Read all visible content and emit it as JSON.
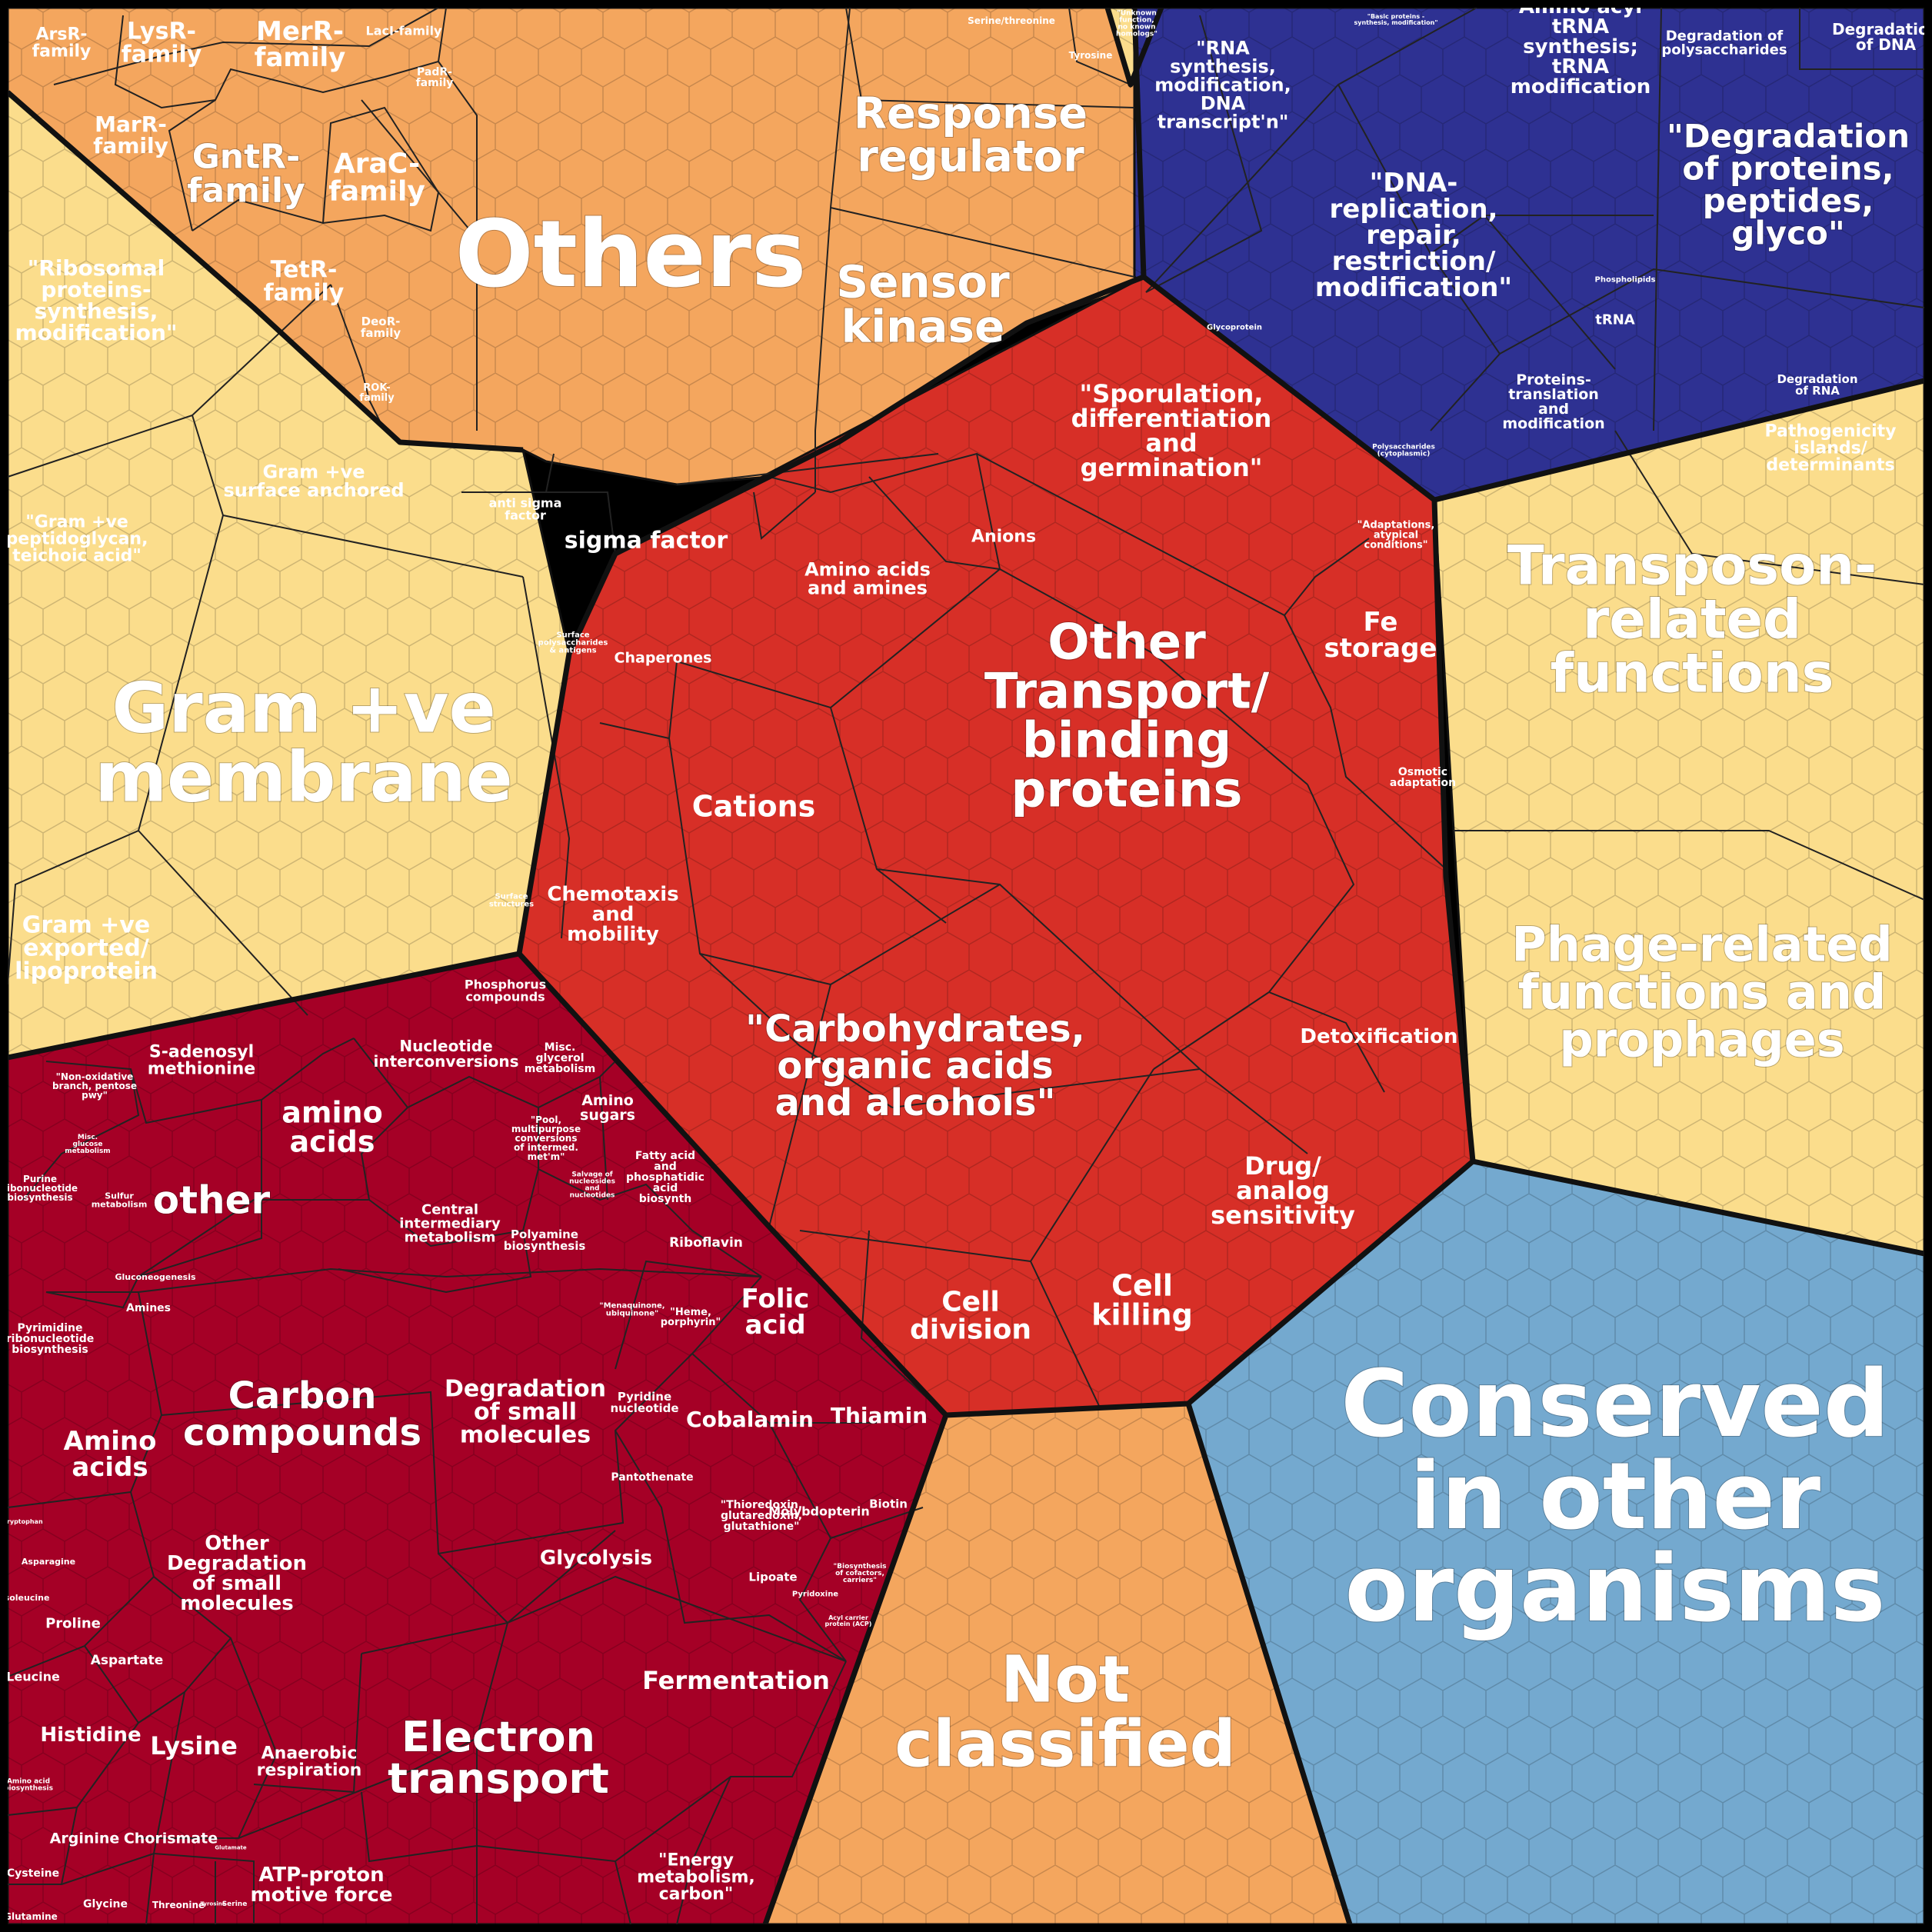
{
  "colors": {
    "orange": "#F4A65E",
    "yellow": "#FBDD8C",
    "blue": "#2E3192",
    "red": "#D72F27",
    "darkred": "#A50026",
    "lightblue": "#74A9CF",
    "border": "#111111"
  },
  "regions": [
    {
      "name": "orange-top-region",
      "color": "orange"
    },
    {
      "name": "yellow-left-region",
      "color": "yellow"
    },
    {
      "name": "yellow-top-small-region",
      "color": "yellow"
    },
    {
      "name": "blue-region",
      "color": "blue"
    },
    {
      "name": "yellow-right-region",
      "color": "yellow"
    },
    {
      "name": "lightblue-region",
      "color": "lightblue"
    },
    {
      "name": "not-classified-region",
      "color": "orange"
    },
    {
      "name": "darkred-region",
      "color": "darkred"
    },
    {
      "name": "red-center-region",
      "color": "red"
    }
  ],
  "labels": [
    {
      "id": "others",
      "lines": [
        "Others"
      ],
      "size": 120,
      "tone": "light"
    },
    {
      "id": "response-regulator",
      "lines": [
        "Response",
        "regulator"
      ],
      "size": 56,
      "tone": "light"
    },
    {
      "id": "sensor-kinase",
      "lines": [
        "Sensor",
        "kinase"
      ],
      "size": 58,
      "tone": "light"
    },
    {
      "id": "sigma-factor",
      "lines": [
        "sigma factor"
      ],
      "size": 30,
      "tone": "light"
    },
    {
      "id": "anti-sigma-factor",
      "lines": [
        "anti sigma",
        "factor"
      ],
      "size": 16,
      "tone": "light"
    },
    {
      "id": "arsr-family",
      "lines": [
        "ArsR-",
        "family"
      ],
      "size": 22,
      "tone": "light"
    },
    {
      "id": "lysr-family",
      "lines": [
        "LysR-",
        "family"
      ],
      "size": 30,
      "tone": "light"
    },
    {
      "id": "merr-family",
      "lines": [
        "MerR-",
        "family"
      ],
      "size": 34,
      "tone": "light"
    },
    {
      "id": "laci-family",
      "lines": [
        "LacI-family"
      ],
      "size": 16,
      "tone": "light"
    },
    {
      "id": "padr-family",
      "lines": [
        "PadR-",
        "family"
      ],
      "size": 14,
      "tone": "light"
    },
    {
      "id": "marr-family",
      "lines": [
        "MarR-",
        "family"
      ],
      "size": 28,
      "tone": "light"
    },
    {
      "id": "gntr-family",
      "lines": [
        "GntR-",
        "family"
      ],
      "size": 44,
      "tone": "light"
    },
    {
      "id": "arac-family",
      "lines": [
        "AraC-",
        "family"
      ],
      "size": 36,
      "tone": "light"
    },
    {
      "id": "tetr-family",
      "lines": [
        "TetR-",
        "family"
      ],
      "size": 30,
      "tone": "light"
    },
    {
      "id": "deor-family",
      "lines": [
        "DeoR-",
        "family"
      ],
      "size": 15,
      "tone": "light"
    },
    {
      "id": "rok-family",
      "lines": [
        "ROK-",
        "family"
      ],
      "size": 13,
      "tone": "light"
    },
    {
      "id": "serine-threonine",
      "lines": [
        "Serine/threonine"
      ],
      "size": 12,
      "tone": "light"
    },
    {
      "id": "tyrosine",
      "lines": [
        "Tyrosine"
      ],
      "size": 12,
      "tone": "light"
    },
    {
      "id": "unknown-function",
      "lines": [
        "\"Unknown",
        "function,",
        "no known",
        "homologs\""
      ],
      "size": 9,
      "tone": "light"
    },
    {
      "id": "ribosomal-proteins",
      "lines": [
        "\"Ribosomal",
        "proteins-",
        "synthesis,",
        "modification\""
      ],
      "size": 28,
      "tone": "light"
    },
    {
      "id": "gram-surface-anchored",
      "lines": [
        "Gram +ve",
        "surface anchored"
      ],
      "size": 24,
      "tone": "light"
    },
    {
      "id": "gram-peptidoglycan",
      "lines": [
        "\"Gram +ve",
        "peptidoglycan,",
        "teichoic acid\""
      ],
      "size": 22,
      "tone": "light"
    },
    {
      "id": "gram-membrane",
      "lines": [
        "Gram +ve",
        "membrane"
      ],
      "size": 90,
      "tone": "light"
    },
    {
      "id": "gram-exported",
      "lines": [
        "Gram +ve",
        "exported/",
        "lipoprotein"
      ],
      "size": 30,
      "tone": "light"
    },
    {
      "id": "surface-polysaccharides",
      "lines": [
        "Surface",
        "polysaccharides",
        "& antigens"
      ],
      "size": 10,
      "tone": "light"
    },
    {
      "id": "surface-structures",
      "lines": [
        "Surface",
        "structures"
      ],
      "size": 10,
      "tone": "light"
    },
    {
      "id": "rna-synthesis",
      "lines": [
        "\"RNA",
        "synthesis,",
        "modification,",
        "DNA",
        "transcript'n\""
      ],
      "size": 24,
      "tone": "light"
    },
    {
      "id": "basic-proteins",
      "lines": [
        "\"Basic proteins -",
        "synthesis, modification\""
      ],
      "size": 8,
      "tone": "light"
    },
    {
      "id": "amino-acyl-trna",
      "lines": [
        "Amino acyl",
        "tRNA",
        "synthesis;",
        "tRNA",
        "modification"
      ],
      "size": 26,
      "tone": "light"
    },
    {
      "id": "degradation-polysaccharides",
      "lines": [
        "Degradation of",
        "polysaccharides"
      ],
      "size": 18,
      "tone": "light"
    },
    {
      "id": "degradation-dna",
      "lines": [
        "Degradation",
        "of DNA"
      ],
      "size": 20,
      "tone": "light"
    },
    {
      "id": "dna-replication",
      "lines": [
        "\"DNA-",
        "replication,",
        "repair,",
        "restriction/",
        "modification\""
      ],
      "size": 34,
      "tone": "light"
    },
    {
      "id": "degradation-proteins",
      "lines": [
        "\"Degradation",
        "of proteins,",
        "peptides,",
        "glyco\""
      ],
      "size": 42,
      "tone": "light"
    },
    {
      "id": "phospholipids",
      "lines": [
        "Phospholipids"
      ],
      "size": 10,
      "tone": "light"
    },
    {
      "id": "trna",
      "lines": [
        "tRNA"
      ],
      "size": 18,
      "tone": "light"
    },
    {
      "id": "glycoprotein",
      "lines": [
        "Glycoprotein"
      ],
      "size": 10,
      "tone": "light"
    },
    {
      "id": "proteins-translation",
      "lines": [
        "Proteins-",
        "translation",
        "and",
        "modification"
      ],
      "size": 19,
      "tone": "light"
    },
    {
      "id": "polysaccharides-cyto",
      "lines": [
        "Polysaccharides",
        "(cytoplasmic)"
      ],
      "size": 9,
      "tone": "light"
    },
    {
      "id": "degradation-rna",
      "lines": [
        "Degradation",
        "of RNA"
      ],
      "size": 15,
      "tone": "light"
    },
    {
      "id": "pathogenicity-islands",
      "lines": [
        "Pathogenicity",
        "islands/",
        "determinants"
      ],
      "size": 22,
      "tone": "light"
    },
    {
      "id": "transposon-related",
      "lines": [
        "Transposon-",
        "related",
        "functions"
      ],
      "size": 70,
      "tone": "light"
    },
    {
      "id": "phage-related",
      "lines": [
        "Phage-related",
        "functions and",
        "prophages"
      ],
      "size": 62,
      "tone": "light"
    },
    {
      "id": "conserved-other",
      "lines": [
        "Conserved",
        "in other",
        "organisms"
      ],
      "size": 120,
      "tone": "light"
    },
    {
      "id": "not-classified",
      "lines": [
        "Not",
        "classified"
      ],
      "size": 84,
      "tone": "light"
    },
    {
      "id": "sporulation",
      "lines": [
        "\"Sporulation,",
        "differentiation",
        "and",
        "germination\""
      ],
      "size": 32,
      "tone": "light"
    },
    {
      "id": "anions",
      "lines": [
        "Anions"
      ],
      "size": 22,
      "tone": "light"
    },
    {
      "id": "adaptations",
      "lines": [
        "\"Adaptations,",
        "atypical",
        "conditions\""
      ],
      "size": 13,
      "tone": "light"
    },
    {
      "id": "amino-acids-amines",
      "lines": [
        "Amino acids",
        "and amines"
      ],
      "size": 24,
      "tone": "light"
    },
    {
      "id": "fe-storage",
      "lines": [
        "Fe",
        "storage"
      ],
      "size": 34,
      "tone": "light"
    },
    {
      "id": "chaperones",
      "lines": [
        "Chaperones"
      ],
      "size": 19,
      "tone": "light"
    },
    {
      "id": "other-transport",
      "lines": [
        "Other",
        "Transport/",
        "binding",
        "proteins"
      ],
      "size": 64,
      "tone": "light"
    },
    {
      "id": "cations",
      "lines": [
        "Cations"
      ],
      "size": 38,
      "tone": "light"
    },
    {
      "id": "osmotic-adaptation",
      "lines": [
        "Osmotic",
        "adaptation"
      ],
      "size": 14,
      "tone": "light"
    },
    {
      "id": "chemotaxis",
      "lines": [
        "Chemotaxis",
        "and",
        "mobility"
      ],
      "size": 26,
      "tone": "light"
    },
    {
      "id": "detoxification",
      "lines": [
        "Detoxification"
      ],
      "size": 26,
      "tone": "light"
    },
    {
      "id": "carbohydrates",
      "lines": [
        "\"Carbohydrates,",
        "organic acids",
        "and alcohols\""
      ],
      "size": 48,
      "tone": "light"
    },
    {
      "id": "drug-analog",
      "lines": [
        "Drug/",
        "analog",
        "sensitivity"
      ],
      "size": 32,
      "tone": "light"
    },
    {
      "id": "cell-division",
      "lines": [
        "Cell",
        "division"
      ],
      "size": 36,
      "tone": "light"
    },
    {
      "id": "cell-killing",
      "lines": [
        "Cell",
        "killing"
      ],
      "size": 38,
      "tone": "light"
    },
    {
      "id": "phosphorus",
      "lines": [
        "Phosphorus",
        "compounds"
      ],
      "size": 16,
      "tone": "light"
    },
    {
      "id": "s-adenosyl",
      "lines": [
        "S-adenosyl",
        "methionine"
      ],
      "size": 22,
      "tone": "light"
    },
    {
      "id": "nucleotide-interconversions",
      "lines": [
        "Nucleotide",
        "interconversions"
      ],
      "size": 20,
      "tone": "light"
    },
    {
      "id": "misc-glycerol",
      "lines": [
        "Misc.",
        "glycerol",
        "metabolism"
      ],
      "size": 14,
      "tone": "light"
    },
    {
      "id": "non-oxidative",
      "lines": [
        "\"Non-oxidative",
        "branch, pentose",
        "pwy\""
      ],
      "size": 12,
      "tone": "light"
    },
    {
      "id": "amino-sugars",
      "lines": [
        "Amino",
        "sugars"
      ],
      "size": 19,
      "tone": "light"
    },
    {
      "id": "amino-acids-small",
      "lines": [
        "amino",
        "acids"
      ],
      "size": 38,
      "tone": "light"
    },
    {
      "id": "misc-glucose",
      "lines": [
        "Misc.",
        "glucose",
        "metabolism"
      ],
      "size": 9,
      "tone": "light"
    },
    {
      "id": "pool-multipurpose",
      "lines": [
        "\"Pool,",
        "multipurpose",
        "conversions",
        "of intermed.",
        "met'm\""
      ],
      "size": 12,
      "tone": "light"
    },
    {
      "id": "other",
      "lines": [
        "other"
      ],
      "size": 50,
      "tone": "light"
    },
    {
      "id": "purine",
      "lines": [
        "Purine",
        "ribonucleotide",
        "biosynthesis"
      ],
      "size": 12,
      "tone": "light"
    },
    {
      "id": "sulfur",
      "lines": [
        "Sulfur",
        "metabolism"
      ],
      "size": 11,
      "tone": "light"
    },
    {
      "id": "salvage",
      "lines": [
        "Salvage of",
        "nucleosides",
        "and",
        "nucleotides"
      ],
      "size": 9,
      "tone": "light"
    },
    {
      "id": "fatty-acid",
      "lines": [
        "Fatty acid",
        "and",
        "phosphatidic",
        "acid",
        "biosynth"
      ],
      "size": 14,
      "tone": "light"
    },
    {
      "id": "central-intermediary",
      "lines": [
        "Central",
        "intermediary",
        "metabolism"
      ],
      "size": 18,
      "tone": "light"
    },
    {
      "id": "polyamine",
      "lines": [
        "Polyamine",
        "biosynthesis"
      ],
      "size": 15,
      "tone": "light"
    },
    {
      "id": "gluconeogenesis",
      "lines": [
        "Gluconeogenesis"
      ],
      "size": 11,
      "tone": "light"
    },
    {
      "id": "riboflavin",
      "lines": [
        "Riboflavin"
      ],
      "size": 17,
      "tone": "light"
    },
    {
      "id": "amines",
      "lines": [
        "Amines"
      ],
      "size": 14,
      "tone": "light"
    },
    {
      "id": "menaquinone",
      "lines": [
        "\"Menaquinone,",
        "ubiquinone\""
      ],
      "size": 10,
      "tone": "light"
    },
    {
      "id": "heme",
      "lines": [
        "\"Heme,",
        "porphyrin\""
      ],
      "size": 13,
      "tone": "light"
    },
    {
      "id": "folic-acid",
      "lines": [
        "Folic",
        "acid"
      ],
      "size": 34,
      "tone": "light"
    },
    {
      "id": "pyrimidine",
      "lines": [
        "Pyrimidine",
        "ribonucleotide",
        "biosynthesis"
      ],
      "size": 14,
      "tone": "light"
    },
    {
      "id": "carbon-compounds",
      "lines": [
        "Carbon",
        "compounds"
      ],
      "size": 48,
      "tone": "light"
    },
    {
      "id": "degradation-small-molecules",
      "lines": [
        "Degradation",
        "of small",
        "molecules"
      ],
      "size": 30,
      "tone": "light"
    },
    {
      "id": "pyridine",
      "lines": [
        "Pyridine",
        "nucleotide"
      ],
      "size": 15,
      "tone": "light"
    },
    {
      "id": "cobalamin",
      "lines": [
        "Cobalamin"
      ],
      "size": 28,
      "tone": "light"
    },
    {
      "id": "thiamin",
      "lines": [
        "Thiamin"
      ],
      "size": 28,
      "tone": "light"
    },
    {
      "id": "amino-acids-big",
      "lines": [
        "Amino",
        "acids"
      ],
      "size": 34,
      "tone": "light"
    },
    {
      "id": "pantothenate",
      "lines": [
        "Pantothenate"
      ],
      "size": 14,
      "tone": "light"
    },
    {
      "id": "biotin",
      "lines": [
        "Biotin"
      ],
      "size": 15,
      "tone": "light"
    },
    {
      "id": "thioredoxin",
      "lines": [
        "\"Thioredoxin,",
        "glutaredoxin,",
        "glutathione\""
      ],
      "size": 14,
      "tone": "light"
    },
    {
      "id": "molybdopterin",
      "lines": [
        "Molybdopterin"
      ],
      "size": 16,
      "tone": "light"
    },
    {
      "id": "tryptophan",
      "lines": [
        "Tryptophan"
      ],
      "size": 8,
      "tone": "light"
    },
    {
      "id": "glycolysis",
      "lines": [
        "Glycolysis"
      ],
      "size": 26,
      "tone": "light"
    },
    {
      "id": "asparagine",
      "lines": [
        "Asparagine"
      ],
      "size": 11,
      "tone": "light"
    },
    {
      "id": "other-degradation",
      "lines": [
        "Other",
        "Degradation",
        "of small",
        "molecules"
      ],
      "size": 26,
      "tone": "light"
    },
    {
      "id": "lipoate",
      "lines": [
        "Lipoate"
      ],
      "size": 15,
      "tone": "light"
    },
    {
      "id": "biosynthesis-cofactors",
      "lines": [
        "\"Biosynthesis",
        "of cofactors,",
        "carriers\""
      ],
      "size": 9,
      "tone": "light"
    },
    {
      "id": "isoleucine",
      "lines": [
        "Isoleucine"
      ],
      "size": 11,
      "tone": "light"
    },
    {
      "id": "pyridoxine",
      "lines": [
        "Pyridoxine"
      ],
      "size": 10,
      "tone": "light"
    },
    {
      "id": "proline",
      "lines": [
        "Proline"
      ],
      "size": 18,
      "tone": "light"
    },
    {
      "id": "acyl-carrier",
      "lines": [
        "Acyl carrier",
        "protein (ACP)"
      ],
      "size": 8,
      "tone": "light"
    },
    {
      "id": "aspartate",
      "lines": [
        "Aspartate"
      ],
      "size": 17,
      "tone": "light"
    },
    {
      "id": "fermentation",
      "lines": [
        "Fermentation"
      ],
      "size": 32,
      "tone": "light"
    },
    {
      "id": "leucine",
      "lines": [
        "Leucine"
      ],
      "size": 16,
      "tone": "light"
    },
    {
      "id": "histidine",
      "lines": [
        "Histidine"
      ],
      "size": 26,
      "tone": "light"
    },
    {
      "id": "lysine",
      "lines": [
        "Lysine"
      ],
      "size": 32,
      "tone": "light"
    },
    {
      "id": "electron-transport",
      "lines": [
        "Electron",
        "transport"
      ],
      "size": 54,
      "tone": "light"
    },
    {
      "id": "anaerobic-respiration",
      "lines": [
        "Anaerobic",
        "respiration"
      ],
      "size": 22,
      "tone": "light"
    },
    {
      "id": "amino-acid-biosynthesis",
      "lines": [
        "Amino acid",
        "biosynthesis"
      ],
      "size": 9,
      "tone": "light"
    },
    {
      "id": "arginine",
      "lines": [
        "Arginine"
      ],
      "size": 19,
      "tone": "light"
    },
    {
      "id": "chorismate",
      "lines": [
        "Chorismate"
      ],
      "size": 19,
      "tone": "light"
    },
    {
      "id": "glutamate",
      "lines": [
        "Glutamate"
      ],
      "size": 7,
      "tone": "light"
    },
    {
      "id": "energy-metabolism",
      "lines": [
        "\"Energy",
        "metabolism,",
        "carbon\""
      ],
      "size": 22,
      "tone": "light"
    },
    {
      "id": "atp-proton",
      "lines": [
        "ATP-proton",
        "motive force"
      ],
      "size": 26,
      "tone": "light"
    },
    {
      "id": "cysteine",
      "lines": [
        "Cysteine"
      ],
      "size": 14,
      "tone": "light"
    },
    {
      "id": "glycine",
      "lines": [
        "Glycine"
      ],
      "size": 14,
      "tone": "light"
    },
    {
      "id": "threonine",
      "lines": [
        "Threonine"
      ],
      "size": 12,
      "tone": "light"
    },
    {
      "id": "serine",
      "lines": [
        "Serine"
      ],
      "size": 9,
      "tone": "light"
    },
    {
      "id": "tyrosine-small",
      "lines": [
        "Tyrosine"
      ],
      "size": 7,
      "tone": "light"
    },
    {
      "id": "glutamine",
      "lines": [
        "Glutamine"
      ],
      "size": 12,
      "tone": "light"
    }
  ]
}
